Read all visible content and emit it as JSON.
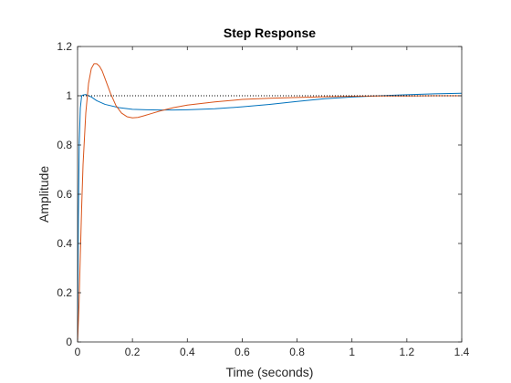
{
  "chart_data": {
    "type": "line",
    "title": "Step Response",
    "xlabel": "Time (seconds)",
    "ylabel": "Amplitude",
    "xlim": [
      0,
      1.4
    ],
    "ylim": [
      0,
      1.2
    ],
    "xticks": [
      0,
      0.2,
      0.4,
      0.6,
      0.8,
      1,
      1.2,
      1.4
    ],
    "yticks": [
      0,
      0.2,
      0.4,
      0.6,
      0.8,
      1,
      1.2
    ],
    "xtick_labels": [
      "0",
      "0.2",
      "0.4",
      "0.6",
      "0.8",
      "1",
      "1.2",
      "1.4"
    ],
    "ytick_labels": [
      "0",
      "0.2",
      "0.4",
      "0.6",
      "0.8",
      "1",
      "1.2"
    ],
    "grid": false,
    "reference_line": {
      "y": 1,
      "style": "dotted",
      "color": "#000000"
    },
    "series": [
      {
        "color": "#0072BD",
        "x": [
          0,
          0.003,
          0.006,
          0.01,
          0.015,
          0.02,
          0.03,
          0.04,
          0.05,
          0.07,
          0.1,
          0.15,
          0.2,
          0.25,
          0.3,
          0.35,
          0.4,
          0.5,
          0.6,
          0.7,
          0.8,
          0.9,
          1.0,
          1.1,
          1.2,
          1.3,
          1.4
        ],
        "values": [
          0,
          0.5,
          0.8,
          0.95,
          1.0,
          1.003,
          1.005,
          1.0,
          0.995,
          0.98,
          0.965,
          0.952,
          0.945,
          0.943,
          0.942,
          0.942,
          0.943,
          0.947,
          0.955,
          0.965,
          0.977,
          0.988,
          0.995,
          1.0,
          1.004,
          1.008,
          1.01
        ]
      },
      {
        "color": "#D95319",
        "x": [
          0,
          0.005,
          0.01,
          0.015,
          0.02,
          0.03,
          0.04,
          0.05,
          0.06,
          0.07,
          0.08,
          0.09,
          0.1,
          0.12,
          0.14,
          0.16,
          0.18,
          0.2,
          0.22,
          0.24,
          0.27,
          0.3,
          0.35,
          0.4,
          0.5,
          0.6,
          0.7,
          0.8,
          0.9,
          1.0,
          1.1,
          1.2,
          1.3,
          1.4
        ],
        "values": [
          0,
          0.14,
          0.35,
          0.55,
          0.72,
          0.93,
          1.05,
          1.11,
          1.13,
          1.13,
          1.12,
          1.1,
          1.07,
          1.01,
          0.96,
          0.93,
          0.915,
          0.91,
          0.912,
          0.918,
          0.928,
          0.938,
          0.952,
          0.962,
          0.975,
          0.985,
          0.99,
          0.993,
          0.996,
          0.998,
          0.999,
          0.999,
          1.0,
          1.0
        ]
      }
    ]
  }
}
